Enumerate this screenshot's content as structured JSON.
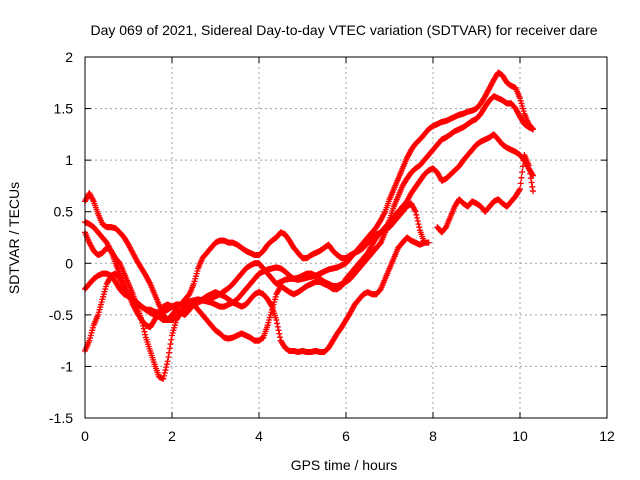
{
  "chart_data": {
    "type": "scatter",
    "title": "Day 069 of 2021, Sidereal Day-to-day VTEC variation (SDTVAR) for receiver dare",
    "xlabel": "GPS time / hours",
    "ylabel": "SDTVAR / TECUs",
    "xlim": [
      0,
      12
    ],
    "ylim": [
      -1.5,
      2
    ],
    "xticks": [
      0,
      2,
      4,
      6,
      8,
      10,
      12
    ],
    "xtick_labels": [
      "0",
      "2",
      "4",
      "6",
      "8",
      "10",
      "12"
    ],
    "yticks": [
      -1.5,
      -1,
      -0.5,
      0,
      0.5,
      1,
      1.5,
      2
    ],
    "ytick_labels": [
      "-1.5",
      "-1",
      "-0.5",
      "0",
      "0.5",
      "1",
      "1.5",
      "2"
    ],
    "grid": true,
    "legend": "none",
    "marker": "+",
    "color": "#ff0000",
    "series": [
      {
        "x": [
          0.0,
          0.1,
          0.2,
          0.3,
          0.4,
          0.5,
          0.6,
          0.7,
          0.8,
          0.9,
          1.0,
          1.1,
          1.2,
          1.3,
          1.4,
          1.5,
          1.6,
          1.7,
          1.8,
          1.9,
          2.0,
          2.1,
          2.2,
          2.3,
          2.4,
          2.5,
          2.6,
          2.7,
          2.8,
          2.9,
          3.0,
          3.1,
          3.2,
          3.3,
          3.4,
          3.5,
          3.6,
          3.7,
          3.8,
          3.9,
          4.0,
          4.1,
          4.2,
          4.3,
          4.4,
          4.5,
          4.6,
          4.7,
          4.8,
          4.9,
          5.0,
          5.1,
          5.2,
          5.3,
          5.4,
          5.5,
          5.6,
          5.7,
          5.8,
          5.9,
          6.0,
          6.1,
          6.2,
          6.3,
          6.4,
          6.5,
          6.6,
          6.7,
          6.8,
          6.9,
          7.0,
          7.1,
          7.2,
          7.3,
          7.4,
          7.5,
          7.6,
          7.7,
          7.8,
          7.9,
          8.0,
          8.1,
          8.2,
          8.3,
          8.4,
          8.5,
          8.6,
          8.7,
          8.8,
          8.9,
          9.0,
          9.1,
          9.2,
          9.3,
          9.4,
          9.5,
          9.6,
          9.7,
          9.8,
          9.9,
          10.0,
          10.1,
          10.2,
          10.3
        ],
        "y": [
          0.4,
          0.38,
          0.35,
          0.3,
          0.25,
          0.2,
          0.12,
          0.0,
          -0.1,
          -0.2,
          -0.3,
          -0.35,
          -0.4,
          -0.42,
          -0.45,
          -0.45,
          -0.47,
          -0.48,
          -0.47,
          -0.45,
          -0.42,
          -0.4,
          -0.4,
          -0.38,
          -0.37,
          -0.36,
          -0.35,
          -0.36,
          -0.37,
          -0.38,
          -0.4,
          -0.42,
          -0.42,
          -0.4,
          -0.38,
          -0.35,
          -0.3,
          -0.25,
          -0.2,
          -0.15,
          -0.1,
          -0.08,
          -0.06,
          -0.05,
          -0.04,
          -0.05,
          -0.08,
          -0.12,
          -0.15,
          -0.16,
          -0.15,
          -0.14,
          -0.13,
          -0.12,
          -0.1,
          -0.08,
          -0.06,
          -0.05,
          -0.04,
          -0.02,
          0.0,
          0.05,
          0.1,
          0.15,
          0.2,
          0.25,
          0.3,
          0.35,
          0.42,
          0.5,
          0.62,
          0.72,
          0.82,
          0.92,
          1.02,
          1.1,
          1.16,
          1.2,
          1.25,
          1.3,
          1.33,
          1.35,
          1.37,
          1.38,
          1.4,
          1.42,
          1.44,
          1.45,
          1.47,
          1.48,
          1.5,
          1.55,
          1.62,
          1.7,
          1.78,
          1.85,
          1.82,
          1.75,
          1.72,
          1.7,
          1.6,
          1.45,
          1.35,
          1.3
        ]
      },
      {
        "x": [
          0.0,
          0.1,
          0.2,
          0.3,
          0.4,
          0.5,
          0.6,
          0.7,
          0.8,
          0.9,
          1.0,
          1.1,
          1.2,
          1.3,
          1.4,
          1.5,
          1.6,
          1.7,
          1.8,
          1.9,
          2.0,
          2.1,
          2.2,
          2.3,
          2.4,
          2.5,
          2.6,
          2.7,
          2.8,
          2.9,
          3.0,
          3.1,
          3.2,
          3.3,
          3.4,
          3.5,
          3.6,
          3.7,
          3.8,
          3.9,
          4.0,
          4.1,
          4.2,
          4.3,
          4.4,
          4.5,
          4.6,
          4.7,
          4.8,
          4.9,
          5.0,
          5.1,
          5.2,
          5.3,
          5.4,
          5.5,
          5.6,
          5.7,
          5.8,
          5.9,
          6.0,
          6.1,
          6.2,
          6.3,
          6.4,
          6.5,
          6.6,
          6.7,
          6.8,
          6.9,
          7.0,
          7.1,
          7.2,
          7.3,
          7.4,
          7.5,
          7.6,
          7.7,
          7.8,
          7.9,
          8.0,
          8.1,
          8.2,
          8.3,
          8.4,
          8.5,
          8.6,
          8.7,
          8.8,
          8.9,
          9.0,
          9.1,
          9.2,
          9.3,
          9.4,
          9.5,
          9.6,
          9.7,
          9.8,
          9.9,
          10.0,
          10.1,
          10.2,
          10.3
        ],
        "y": [
          0.6,
          0.68,
          0.6,
          0.48,
          0.38,
          0.35,
          0.35,
          0.34,
          0.3,
          0.25,
          0.18,
          0.1,
          0.02,
          -0.05,
          -0.12,
          -0.2,
          -0.3,
          -0.4,
          -0.5,
          -0.55,
          -0.55,
          -0.52,
          -0.48,
          -0.45,
          -0.42,
          -0.4,
          -0.38,
          -0.36,
          -0.35,
          -0.34,
          -0.32,
          -0.3,
          -0.27,
          -0.24,
          -0.2,
          -0.15,
          -0.1,
          -0.05,
          -0.02,
          0.0,
          0.0,
          -0.05,
          -0.1,
          -0.15,
          -0.2,
          -0.18,
          -0.16,
          -0.15,
          -0.15,
          -0.14,
          -0.12,
          -0.1,
          -0.1,
          -0.12,
          -0.15,
          -0.18,
          -0.2,
          -0.22,
          -0.22,
          -0.2,
          -0.18,
          -0.15,
          -0.1,
          -0.05,
          0.0,
          0.05,
          0.1,
          0.15,
          0.2,
          0.3,
          0.42,
          0.55,
          0.65,
          0.75,
          0.82,
          0.88,
          0.92,
          0.95,
          1.0,
          1.05,
          1.1,
          1.15,
          1.2,
          1.22,
          1.25,
          1.28,
          1.3,
          1.32,
          1.35,
          1.38,
          1.4,
          1.45,
          1.52,
          1.58,
          1.62,
          1.6,
          1.58,
          1.55,
          1.55,
          1.5,
          1.42,
          1.35,
          1.32,
          1.3
        ]
      },
      {
        "x": [
          0.0,
          0.1,
          0.2,
          0.3,
          0.4,
          0.5,
          0.6,
          0.7,
          0.8,
          0.9,
          1.0,
          1.1,
          1.2,
          1.3,
          1.4,
          1.5,
          1.6,
          1.7,
          1.8,
          1.9,
          2.0,
          2.1,
          2.2,
          2.3,
          2.4,
          2.5,
          2.6,
          2.7,
          2.8,
          2.9,
          3.0,
          3.1,
          3.2,
          3.3,
          3.4,
          3.5,
          3.6,
          3.7,
          3.8,
          3.9,
          4.0,
          4.1,
          4.2,
          4.3,
          4.4,
          4.5,
          4.6,
          4.7,
          4.8,
          4.9,
          5.0,
          5.1,
          5.2,
          5.3,
          5.4,
          5.5,
          5.6,
          5.7,
          5.8,
          5.9,
          6.0,
          6.1,
          6.2,
          6.3,
          6.4,
          6.5,
          6.6,
          6.7,
          6.8,
          6.9,
          7.0,
          7.1,
          7.2,
          7.3,
          7.4,
          7.5,
          7.6,
          7.7,
          7.8,
          7.9,
          8.0,
          8.1,
          8.2,
          8.3,
          8.4,
          8.5,
          8.6,
          8.7,
          8.8,
          8.9,
          9.0,
          9.1,
          9.2,
          9.3,
          9.4,
          9.5,
          9.6,
          9.7,
          9.8,
          9.9,
          10.0,
          10.1,
          10.2,
          10.3
        ],
        "y": [
          0.3,
          0.2,
          0.12,
          0.08,
          0.1,
          0.15,
          0.12,
          0.05,
          0.0,
          -0.1,
          -0.2,
          -0.3,
          -0.42,
          -0.55,
          -0.72,
          -0.85,
          -0.98,
          -1.1,
          -1.12,
          -0.95,
          -0.7,
          -0.55,
          -0.48,
          -0.42,
          -0.38,
          -0.4,
          -0.45,
          -0.5,
          -0.55,
          -0.6,
          -0.65,
          -0.68,
          -0.72,
          -0.73,
          -0.72,
          -0.7,
          -0.68,
          -0.7,
          -0.72,
          -0.75,
          -0.75,
          -0.72,
          -0.6,
          -0.45,
          -0.3,
          -0.22,
          -0.25,
          -0.28,
          -0.3,
          -0.28,
          -0.25,
          -0.22,
          -0.2,
          -0.18,
          -0.18,
          -0.2,
          -0.22,
          -0.25,
          -0.25,
          -0.22,
          -0.15,
          -0.1,
          -0.05,
          0.0,
          0.05,
          0.1,
          0.18,
          0.25,
          0.3,
          0.35,
          0.4,
          0.45,
          0.5,
          0.55,
          0.6,
          0.68,
          0.74,
          0.8,
          0.86,
          0.9,
          0.92,
          0.88,
          0.8,
          0.82,
          0.86,
          0.9,
          0.94,
          1.0,
          1.05,
          1.1,
          1.15,
          1.18,
          1.2,
          1.22,
          1.25,
          1.2,
          1.15,
          1.12,
          1.1,
          1.08,
          1.05,
          1.0,
          0.92,
          0.85
        ]
      },
      {
        "x": [
          0.0,
          0.1,
          0.2,
          0.3,
          0.4,
          0.5,
          0.6,
          0.7,
          0.8,
          0.9,
          1.0,
          1.1,
          1.2,
          1.3,
          1.4,
          1.5,
          1.6,
          1.7,
          1.8,
          1.9,
          2.0,
          2.1,
          2.2,
          2.3,
          2.4,
          2.5,
          2.6,
          2.7,
          2.8,
          2.9,
          3.0,
          3.1,
          3.2,
          3.3,
          3.4,
          3.5,
          3.6,
          3.7,
          3.8,
          3.9,
          4.0,
          4.1,
          4.2,
          4.3,
          4.4,
          4.5,
          4.6,
          4.7,
          4.8,
          4.9,
          5.0,
          5.1,
          5.2,
          5.3,
          5.4,
          5.5,
          5.6,
          5.7,
          5.8,
          5.9,
          6.0,
          6.1,
          6.2,
          6.3,
          6.4,
          6.5,
          6.6,
          6.7,
          6.8,
          6.9,
          7.0,
          7.1,
          7.2,
          7.3,
          7.4,
          7.5,
          7.6,
          7.7,
          7.8,
          7.9
        ],
        "y": [
          -0.25,
          -0.2,
          -0.15,
          -0.12,
          -0.1,
          -0.1,
          -0.12,
          -0.18,
          -0.25,
          -0.3,
          -0.32,
          -0.35,
          -0.38,
          -0.42,
          -0.45,
          -0.48,
          -0.5,
          -0.52,
          -0.55,
          -0.55,
          -0.5,
          -0.45,
          -0.4,
          -0.35,
          -0.3,
          -0.2,
          -0.05,
          0.05,
          0.1,
          0.15,
          0.2,
          0.22,
          0.22,
          0.2,
          0.2,
          0.18,
          0.15,
          0.12,
          0.1,
          0.08,
          0.08,
          0.12,
          0.18,
          0.22,
          0.25,
          0.3,
          0.28,
          0.22,
          0.15,
          0.1,
          0.05,
          0.05,
          0.08,
          0.1,
          0.12,
          0.15,
          0.18,
          0.12,
          0.08,
          0.05,
          0.05,
          0.08,
          0.1,
          0.12,
          0.15,
          0.2,
          0.25,
          0.28,
          0.3,
          0.32,
          0.35,
          0.4,
          0.45,
          0.5,
          0.55,
          0.58,
          0.5,
          0.32,
          0.2,
          0.2
        ]
      },
      {
        "x": [
          0.0,
          0.1,
          0.2,
          0.3,
          0.4,
          0.5,
          0.6,
          0.7,
          0.8,
          0.9,
          1.0,
          1.1,
          1.2,
          1.3,
          1.4,
          1.5,
          1.6,
          1.7,
          1.8,
          1.9,
          2.0,
          2.1,
          2.2,
          2.3,
          2.4,
          2.5,
          2.6,
          2.7,
          2.8,
          2.9,
          3.0,
          3.1,
          3.2,
          3.3,
          3.4,
          3.5,
          3.6,
          3.7,
          3.8,
          3.9,
          4.0,
          4.1,
          4.2,
          4.3,
          4.4,
          4.5,
          4.6,
          4.7,
          4.8,
          4.9,
          5.0,
          5.1,
          5.2,
          5.3,
          5.4,
          5.5,
          5.6,
          5.7,
          5.8,
          5.9,
          6.0,
          6.1,
          6.2,
          6.3,
          6.4,
          6.5,
          6.6,
          6.7,
          6.8,
          6.9,
          7.0,
          7.1,
          7.2,
          7.3,
          7.4,
          7.5,
          7.6,
          7.7,
          7.8
        ],
        "y": [
          -0.85,
          -0.75,
          -0.6,
          -0.5,
          -0.35,
          -0.2,
          -0.12,
          -0.1,
          -0.15,
          -0.25,
          -0.3,
          -0.4,
          -0.48,
          -0.55,
          -0.6,
          -0.62,
          -0.55,
          -0.48,
          -0.42,
          -0.4,
          -0.42,
          -0.45,
          -0.48,
          -0.5,
          -0.45,
          -0.4,
          -0.38,
          -0.35,
          -0.32,
          -0.3,
          -0.28,
          -0.3,
          -0.32,
          -0.35,
          -0.38,
          -0.4,
          -0.42,
          -0.4,
          -0.35,
          -0.3,
          -0.28,
          -0.3,
          -0.35,
          -0.42,
          -0.55,
          -0.75,
          -0.82,
          -0.85,
          -0.85,
          -0.86,
          -0.85,
          -0.86,
          -0.86,
          -0.85,
          -0.86,
          -0.86,
          -0.82,
          -0.75,
          -0.68,
          -0.62,
          -0.55,
          -0.48,
          -0.4,
          -0.35,
          -0.3,
          -0.28,
          -0.3,
          -0.3,
          -0.25,
          -0.15,
          -0.05,
          0.05,
          0.15,
          0.2,
          0.25,
          0.22,
          0.2,
          0.18,
          0.2
        ]
      },
      {
        "x": [
          8.1,
          8.2,
          8.3,
          8.4,
          8.5,
          8.6,
          8.7,
          8.8,
          8.9,
          9.0,
          9.1,
          9.2,
          9.3,
          9.4,
          9.5,
          9.6,
          9.7,
          9.8,
          9.9,
          10.0,
          10.1,
          10.2,
          10.3
        ],
        "y": [
          0.35,
          0.3,
          0.35,
          0.45,
          0.55,
          0.62,
          0.58,
          0.55,
          0.6,
          0.58,
          0.55,
          0.5,
          0.55,
          0.6,
          0.62,
          0.58,
          0.55,
          0.6,
          0.65,
          0.72,
          1.05,
          0.95,
          0.7
        ]
      }
    ]
  }
}
